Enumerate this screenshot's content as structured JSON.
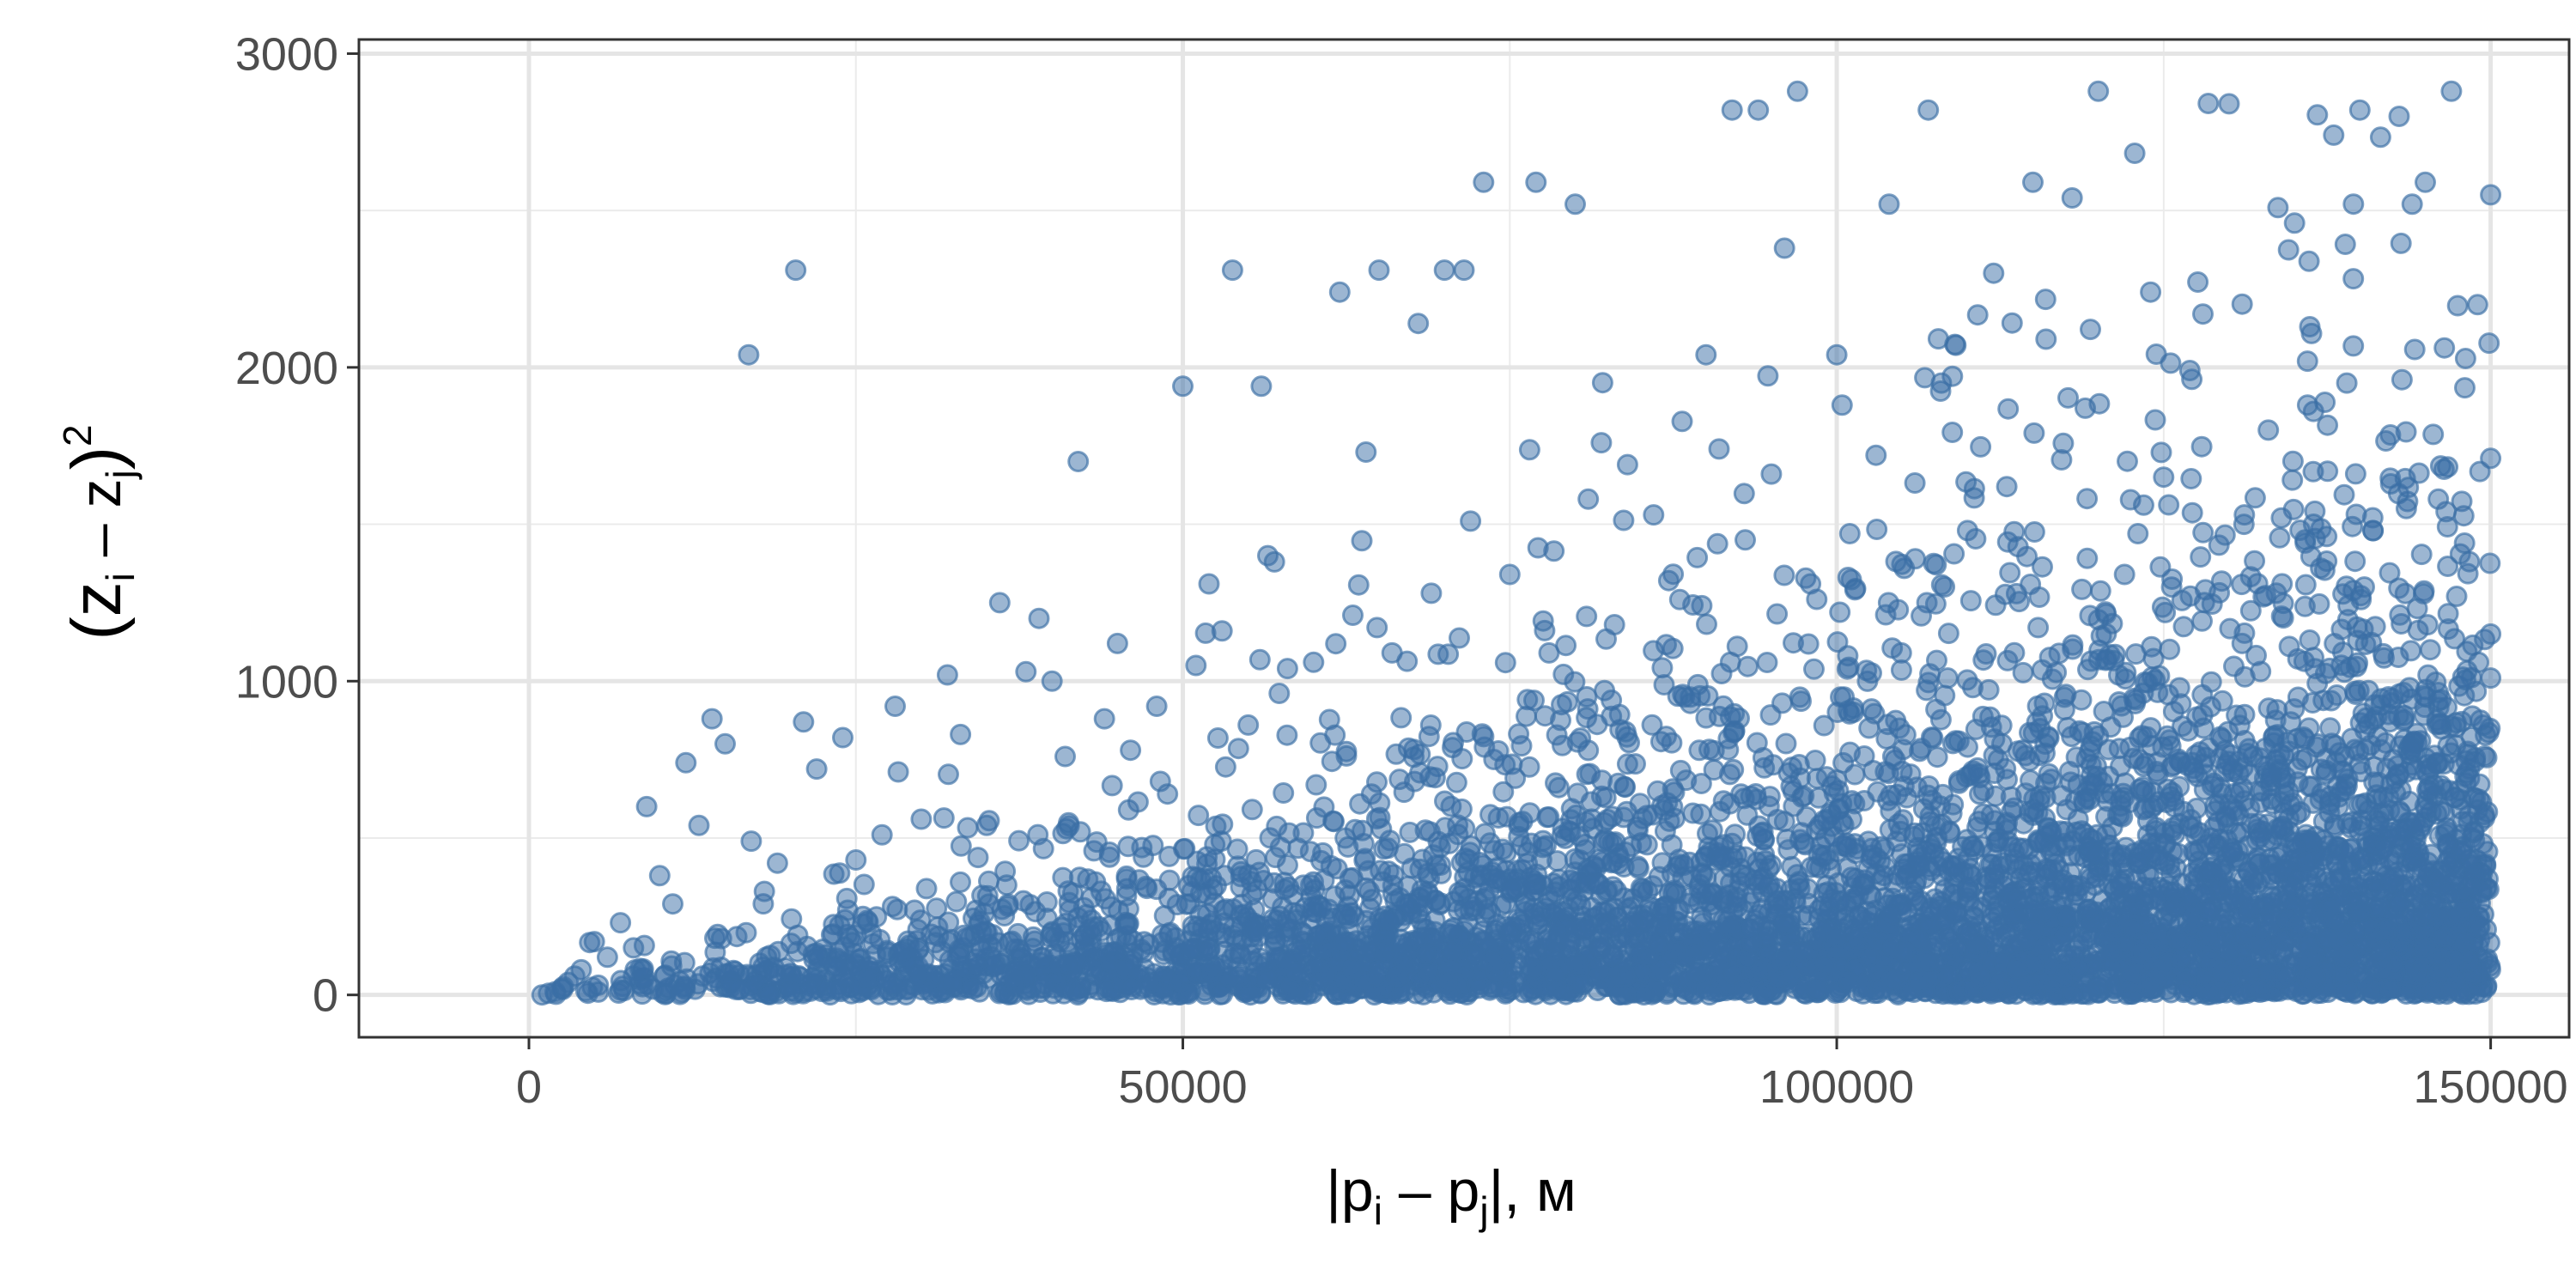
{
  "chart_data": {
    "type": "scatter",
    "title": "",
    "xlabel": {
      "base1": "|p",
      "sub1": "i",
      "mid": " – p",
      "sub2": "j",
      "tail": "|, м"
    },
    "ylabel": {
      "open": "(z",
      "sub1": "i",
      "mid": " – z",
      "sub2": "j",
      "close": ")",
      "sup": "2"
    },
    "xlim": [
      -13000,
      156000
    ],
    "ylim": [
      -135,
      3045
    ],
    "x_ticks": [
      0,
      50000,
      100000,
      150000
    ],
    "x_tick_labels": [
      "0",
      "50000",
      "100000",
      "150000"
    ],
    "y_ticks": [
      0,
      1000,
      2000,
      3000
    ],
    "y_tick_labels": [
      "0",
      "1000",
      "2000",
      "3000"
    ],
    "grid": true,
    "legend": "none",
    "point_color": "#3a6ea5",
    "point_opacity": 0.5,
    "n_points": 6000,
    "x_range": [
      500,
      150000
    ],
    "y_range": [
      0,
      2880
    ],
    "points": [
      [
        1000,
        0
      ],
      [
        2000,
        10
      ],
      [
        3000,
        40
      ],
      [
        4000,
        80
      ],
      [
        6000,
        120
      ],
      [
        8000,
        150
      ],
      [
        9000,
        600
      ],
      [
        10000,
        380
      ],
      [
        12000,
        740
      ],
      [
        13000,
        540
      ],
      [
        14000,
        880
      ],
      [
        15000,
        800
      ],
      [
        16800,
        2040
      ],
      [
        17000,
        490
      ],
      [
        20400,
        2310
      ],
      [
        21000,
        870
      ],
      [
        22000,
        720
      ],
      [
        24000,
        820
      ],
      [
        28000,
        920
      ],
      [
        30000,
        560
      ],
      [
        32000,
        1020
      ],
      [
        36000,
        1250
      ],
      [
        38000,
        1030
      ],
      [
        39000,
        1200
      ],
      [
        42000,
        1700
      ],
      [
        45000,
        1120
      ],
      [
        50000,
        1940
      ],
      [
        52000,
        1310
      ],
      [
        53000,
        1160
      ],
      [
        53800,
        2310
      ],
      [
        56000,
        1940
      ],
      [
        56500,
        1400
      ],
      [
        57000,
        1380
      ],
      [
        62000,
        2240
      ],
      [
        64000,
        1730
      ],
      [
        65000,
        2310
      ],
      [
        68000,
        2140
      ],
      [
        70000,
        2310
      ],
      [
        71500,
        2310
      ],
      [
        73000,
        2590
      ],
      [
        77000,
        2590
      ],
      [
        80000,
        2520
      ],
      [
        82000,
        1760
      ],
      [
        84000,
        1690
      ],
      [
        90000,
        2040
      ],
      [
        92000,
        2820
      ],
      [
        94000,
        2820
      ],
      [
        96000,
        2380
      ],
      [
        97000,
        2880
      ],
      [
        100000,
        2040
      ],
      [
        104000,
        2520
      ],
      [
        107000,
        2820
      ],
      [
        112000,
        2300
      ],
      [
        115000,
        2590
      ],
      [
        118000,
        2540
      ],
      [
        120000,
        2880
      ],
      [
        124000,
        2240
      ],
      [
        128000,
        2170
      ],
      [
        130000,
        2840
      ],
      [
        133000,
        1800
      ],
      [
        135000,
        2460
      ],
      [
        138000,
        2740
      ],
      [
        140000,
        2820
      ],
      [
        143000,
        2800
      ],
      [
        145000,
        2590
      ],
      [
        147000,
        2880
      ],
      [
        149000,
        2200
      ],
      [
        150000,
        2550
      ],
      [
        150000,
        1710
      ],
      [
        150000,
        1150
      ],
      [
        150000,
        1010
      ],
      [
        148000,
        1440
      ],
      [
        146000,
        1580
      ],
      [
        144000,
        2520
      ],
      [
        141000,
        1480
      ],
      [
        139000,
        1950
      ],
      [
        137000,
        1360
      ],
      [
        136000,
        1880
      ],
      [
        134000,
        1520
      ],
      [
        131000,
        1120
      ],
      [
        127000,
        1990
      ],
      [
        125000,
        1650
      ],
      [
        122000,
        1340
      ],
      [
        119000,
        1870
      ],
      [
        116000,
        2090
      ],
      [
        113000,
        1620
      ],
      [
        110000,
        1480
      ],
      [
        108000,
        1950
      ],
      [
        106000,
        1390
      ],
      [
        103000,
        1720
      ],
      [
        101000,
        1470
      ],
      [
        98000,
        1310
      ],
      [
        95000,
        1660
      ],
      [
        93000,
        1450
      ],
      [
        91000,
        1740
      ],
      [
        88000,
        1260
      ],
      [
        86000,
        1530
      ],
      [
        83000,
        1180
      ],
      [
        81000,
        1580
      ],
      [
        78000,
        1090
      ],
      [
        75000,
        1340
      ],
      [
        72000,
        1510
      ],
      [
        69000,
        1280
      ],
      [
        66000,
        1090
      ],
      [
        63000,
        1210
      ],
      [
        60000,
        1060
      ],
      [
        58000,
        1040
      ],
      [
        55000,
        860
      ],
      [
        51000,
        1050
      ],
      [
        48000,
        920
      ],
      [
        46000,
        780
      ],
      [
        44000,
        880
      ],
      [
        41000,
        760
      ],
      [
        40000,
        1000
      ],
      [
        35000,
        540
      ],
      [
        33000,
        830
      ],
      [
        27000,
        510
      ],
      [
        25000,
        430
      ],
      [
        19000,
        420
      ],
      [
        18000,
        330
      ],
      [
        11000,
        290
      ],
      [
        7000,
        230
      ],
      [
        5000,
        170
      ],
      [
        3500,
        60
      ],
      [
        2500,
        20
      ],
      [
        1500,
        5
      ]
    ]
  }
}
